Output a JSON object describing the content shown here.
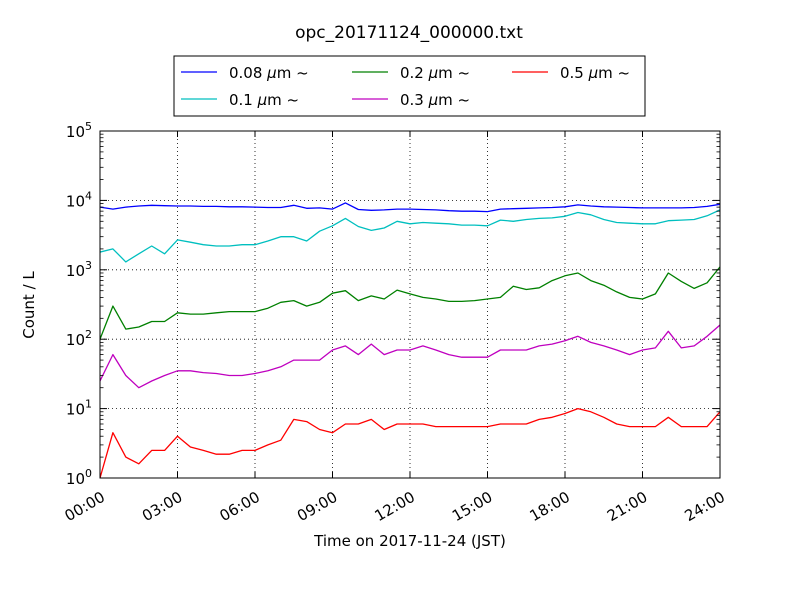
{
  "chart_data": {
    "type": "line",
    "title": "opc_20171124_000000.txt",
    "xlabel": "Time on 2017-11-24 (JST)",
    "ylabel": "Count / L",
    "x_unit": "hours",
    "xlim": [
      0,
      24
    ],
    "ylim": [
      1,
      100000
    ],
    "yscale": "log",
    "grid": true,
    "legend_position": "top-center",
    "x_ticks": [
      {
        "value": 0,
        "label": "00:00"
      },
      {
        "value": 3,
        "label": "03:00"
      },
      {
        "value": 6,
        "label": "06:00"
      },
      {
        "value": 9,
        "label": "09:00"
      },
      {
        "value": 12,
        "label": "12:00"
      },
      {
        "value": 15,
        "label": "15:00"
      },
      {
        "value": 18,
        "label": "18:00"
      },
      {
        "value": 21,
        "label": "21:00"
      },
      {
        "value": 24,
        "label": "24:00"
      }
    ],
    "y_ticks": [
      {
        "value": 1,
        "base": "10",
        "exp": "0"
      },
      {
        "value": 10,
        "base": "10",
        "exp": "1"
      },
      {
        "value": 100,
        "base": "10",
        "exp": "2"
      },
      {
        "value": 1000,
        "base": "10",
        "exp": "3"
      },
      {
        "value": 10000,
        "base": "10",
        "exp": "4"
      },
      {
        "value": 100000,
        "base": "10",
        "exp": "5"
      }
    ],
    "x": [
      0,
      0.5,
      1,
      1.5,
      2,
      2.5,
      3,
      3.5,
      4,
      4.5,
      5,
      5.5,
      6,
      6.5,
      7,
      7.5,
      8,
      8.5,
      9,
      9.5,
      10,
      10.5,
      11,
      11.5,
      12,
      12.5,
      13,
      13.5,
      14,
      14.5,
      15,
      15.5,
      16,
      16.5,
      17,
      17.5,
      18,
      18.5,
      19,
      19.5,
      20,
      20.5,
      21,
      21.5,
      22,
      22.5,
      23,
      23.5,
      24
    ],
    "series": [
      {
        "name": "0.08",
        "unit": "μm",
        "suffix": "~",
        "color": "#0000ff",
        "values": [
          8000,
          7500,
          8000,
          8300,
          8500,
          8400,
          8300,
          8300,
          8200,
          8200,
          8100,
          8100,
          8000,
          7900,
          7900,
          8500,
          7700,
          7800,
          7500,
          9200,
          7400,
          7200,
          7300,
          7500,
          7500,
          7400,
          7300,
          7100,
          7000,
          7000,
          6900,
          7500,
          7600,
          7700,
          7800,
          7900,
          8100,
          8600,
          8300,
          8100,
          8000,
          7900,
          7800,
          7800,
          7800,
          7800,
          7900,
          8200,
          8800
        ]
      },
      {
        "name": "0.1",
        "unit": "μm",
        "suffix": "~",
        "color": "#00bfbf",
        "values": [
          1800,
          2000,
          1300,
          1700,
          2200,
          1700,
          2700,
          2500,
          2300,
          2200,
          2200,
          2300,
          2300,
          2600,
          3000,
          3000,
          2600,
          3600,
          4300,
          5500,
          4200,
          3700,
          4000,
          5000,
          4600,
          4800,
          4700,
          4600,
          4400,
          4400,
          4300,
          5200,
          5000,
          5300,
          5500,
          5600,
          5900,
          6700,
          6200,
          5300,
          4800,
          4700,
          4600,
          4600,
          5100,
          5200,
          5300,
          6000,
          7300
        ]
      },
      {
        "name": "0.2",
        "unit": "μm",
        "suffix": "~",
        "color": "#008000",
        "values": [
          100,
          300,
          140,
          150,
          180,
          180,
          240,
          230,
          230,
          240,
          250,
          250,
          250,
          280,
          340,
          360,
          300,
          340,
          460,
          500,
          360,
          420,
          380,
          510,
          450,
          400,
          380,
          350,
          350,
          360,
          380,
          400,
          580,
          520,
          550,
          700,
          820,
          900,
          700,
          600,
          480,
          400,
          380,
          450,
          900,
          680,
          540,
          650,
          1100
        ]
      },
      {
        "name": "0.3",
        "unit": "μm",
        "suffix": "~",
        "color": "#bf00bf",
        "values": [
          25,
          60,
          30,
          20,
          25,
          30,
          35,
          35,
          33,
          32,
          30,
          30,
          32,
          35,
          40,
          50,
          50,
          50,
          70,
          80,
          60,
          85,
          60,
          70,
          70,
          80,
          70,
          60,
          55,
          55,
          55,
          70,
          70,
          70,
          80,
          85,
          95,
          110,
          90,
          80,
          70,
          60,
          70,
          75,
          130,
          75,
          80,
          110,
          160
        ]
      },
      {
        "name": "0.5",
        "unit": "μm",
        "suffix": "~",
        "color": "#ff0000",
        "values": [
          1,
          4.5,
          2,
          1.6,
          2.5,
          2.5,
          4,
          2.8,
          2.5,
          2.2,
          2.2,
          2.5,
          2.5,
          3,
          3.5,
          7,
          6.5,
          5,
          4.5,
          6,
          6,
          7,
          5,
          6,
          6,
          6,
          5.5,
          5.5,
          5.5,
          5.5,
          5.5,
          6,
          6,
          6,
          7,
          7.5,
          8.5,
          10,
          9,
          7.5,
          6,
          5.5,
          5.5,
          5.5,
          7.5,
          5.5,
          5.5,
          5.5,
          9
        ]
      }
    ]
  }
}
